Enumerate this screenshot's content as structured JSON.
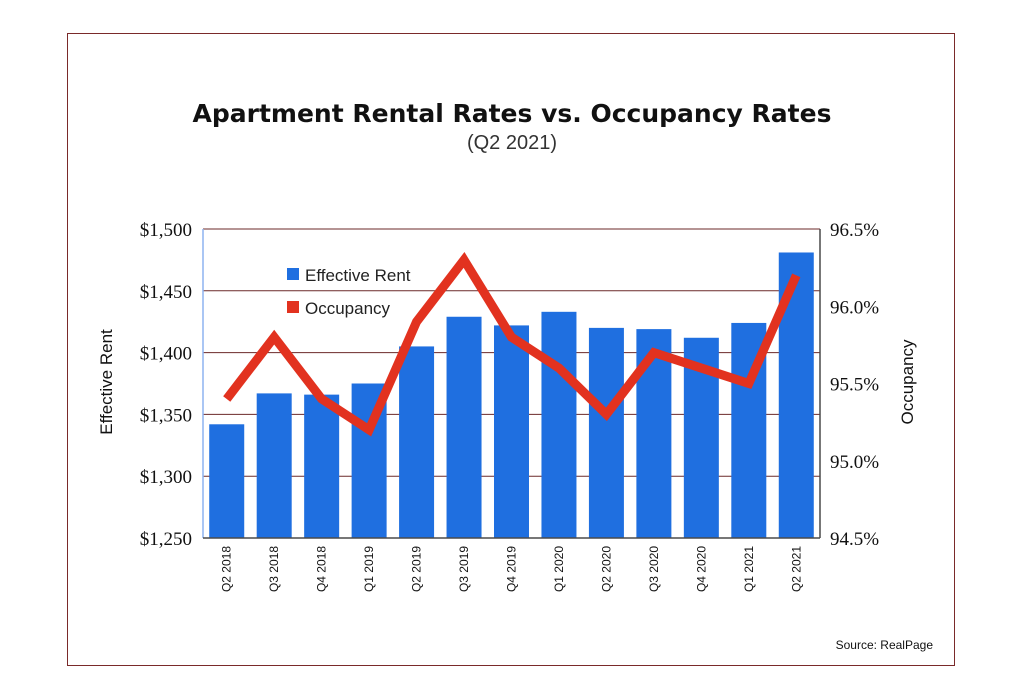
{
  "chart_data": {
    "type": "bar",
    "title": "Apartment Rental Rates vs. Occupancy Rates",
    "subtitle": "(Q2 2021)",
    "categories": [
      "Q2 2018",
      "Q3 2018",
      "Q4 2018",
      "Q1 2019",
      "Q2 2019",
      "Q3 2019",
      "Q4 2019",
      "Q1 2020",
      "Q2 2020",
      "Q3 2020",
      "Q4 2020",
      "Q1 2021",
      "Q2 2021"
    ],
    "series": [
      {
        "name": "Effective Rent",
        "type": "bar",
        "axis": "left",
        "color": "#1f6fe0",
        "values": [
          1342,
          1367,
          1366,
          1375,
          1405,
          1429,
          1422,
          1433,
          1420,
          1419,
          1412,
          1424,
          1481
        ]
      },
      {
        "name": "Occupancy",
        "type": "line",
        "axis": "right",
        "color": "#e2321f",
        "values": [
          95.4,
          95.8,
          95.4,
          95.2,
          95.9,
          96.3,
          95.8,
          95.6,
          95.3,
          95.7,
          95.6,
          95.5,
          96.2
        ]
      }
    ],
    "ylabel": "Effective Rent",
    "ylabel_right": "Occupancy",
    "ylim": [
      1250,
      1500
    ],
    "ylim_right": [
      94.5,
      96.5
    ],
    "yticks": [
      "$1,500",
      "$1,450",
      "$1,400",
      "$1,350",
      "$1,300",
      "$1,250"
    ],
    "yticks_right": [
      "96.5%",
      "96.0%",
      "95.5%",
      "95.0%",
      "94.5%"
    ],
    "grid": true,
    "legend": "top-left",
    "source": "Source: RealPage"
  }
}
